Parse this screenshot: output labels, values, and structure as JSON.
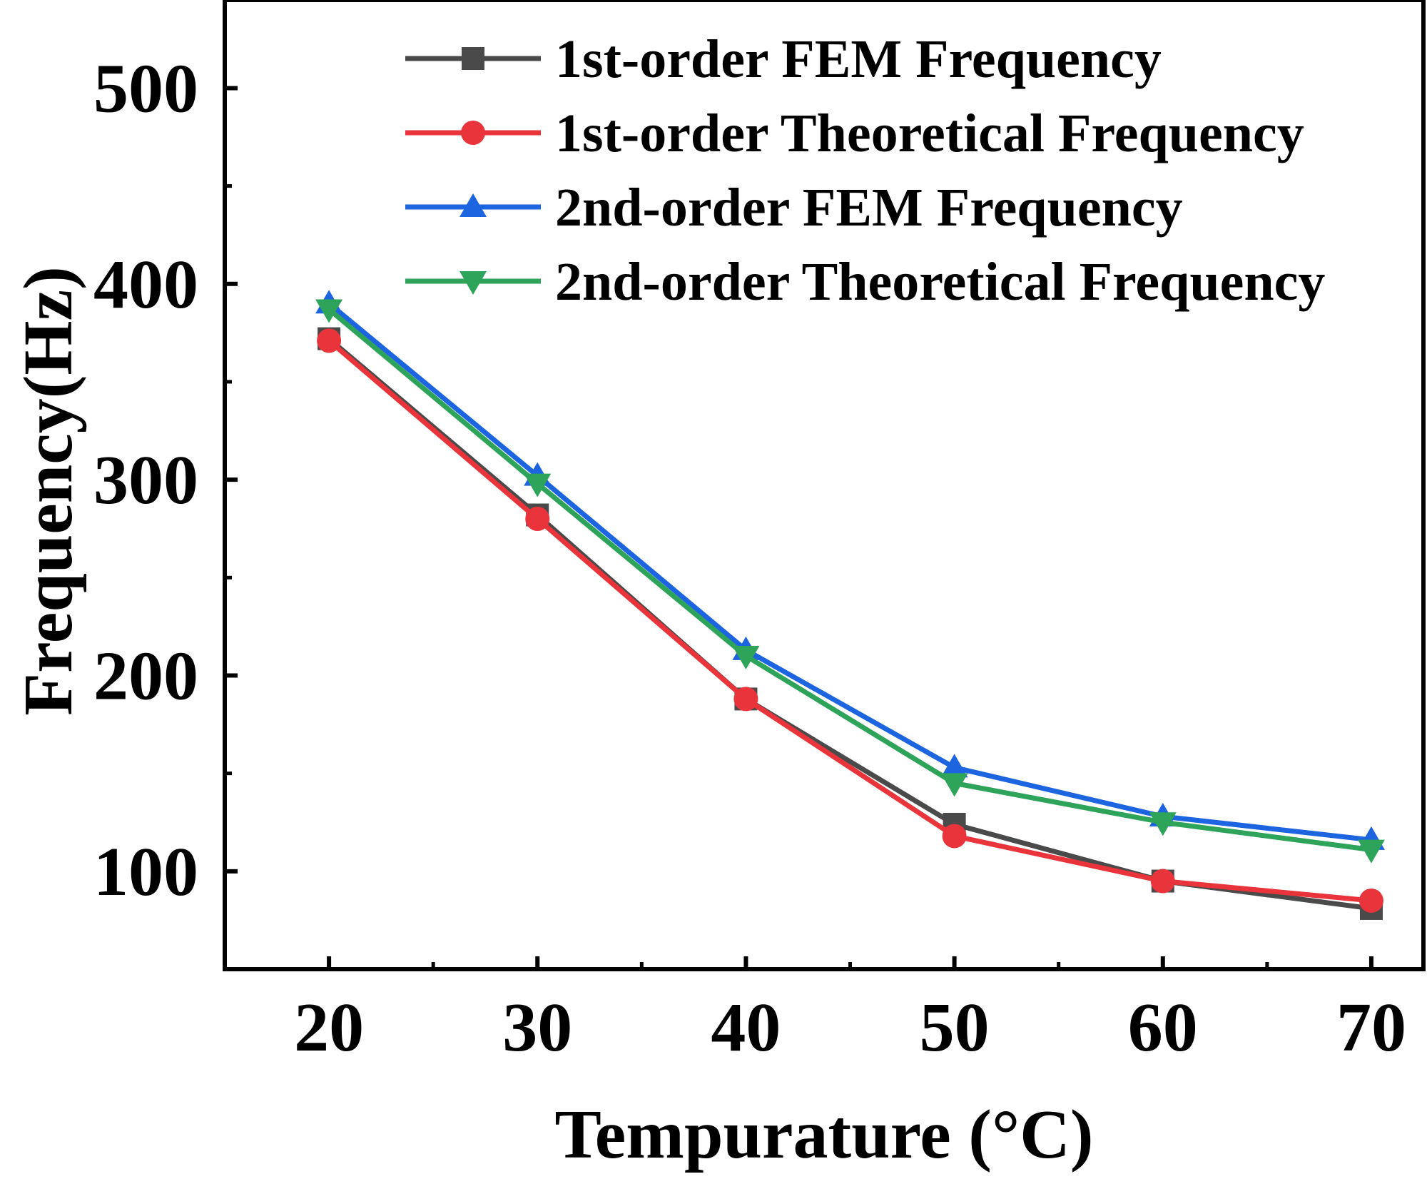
{
  "chart_data": {
    "type": "line",
    "x": [
      20,
      30,
      40,
      50,
      60,
      70
    ],
    "xlabel": "Tempurature (°C)",
    "ylabel": "Frequency(Hz)",
    "xlim": [
      15,
      72.5
    ],
    "ylim": [
      50,
      545
    ],
    "xticks": [
      20,
      30,
      40,
      50,
      60,
      70
    ],
    "yticks": [
      100,
      200,
      300,
      400,
      500
    ],
    "grid": false,
    "legend_position": "top-right",
    "series": [
      {
        "name": "1st-order FEM Frequency",
        "marker": "square",
        "color": "#4a4a4a",
        "values": [
          372,
          282,
          188,
          124,
          95,
          81
        ]
      },
      {
        "name": "1st-order Theoretical Frequency",
        "marker": "circle",
        "color": "#e8343a",
        "values": [
          371,
          280,
          188,
          118,
          95,
          85
        ]
      },
      {
        "name": "2nd-order FEM Frequency",
        "marker": "triangle-up",
        "color": "#1c64e0",
        "values": [
          390,
          302,
          213,
          153,
          128,
          116
        ]
      },
      {
        "name": "2nd-order Theoretical Frequency",
        "marker": "triangle-down",
        "color": "#2ea35a",
        "values": [
          387,
          298,
          210,
          145,
          125,
          111
        ]
      }
    ]
  }
}
